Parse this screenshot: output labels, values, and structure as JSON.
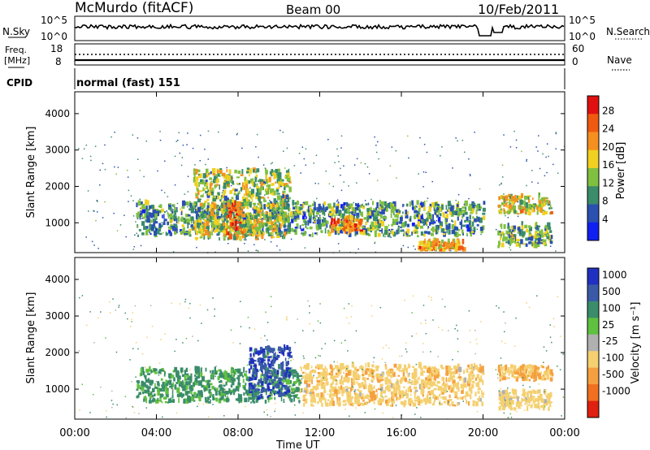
{
  "header": {
    "station": "McMurdo (fitACF)",
    "beam": "Beam 00",
    "date": "10/Feb/2011"
  },
  "strip_nsky": {
    "left_label": "N.Sky",
    "right_label": "N.Search",
    "left_ticks": [
      "10^5",
      "10^0"
    ],
    "right_ticks": [
      "10^5",
      "10^0"
    ]
  },
  "strip_freq": {
    "left_label_1": "Freq.",
    "left_label_2": "[MHz]",
    "right_label": "Nave",
    "left_ticks": [
      "18",
      "8"
    ],
    "right_ticks": [
      "60",
      "0"
    ]
  },
  "strip_cpid": {
    "label": "CPID",
    "value": "normal (fast) 151"
  },
  "x_axis": {
    "title": "Time UT",
    "ticks": [
      "00:00",
      "04:00",
      "08:00",
      "12:00",
      "16:00",
      "20:00",
      "00:00"
    ]
  },
  "power_colorbar": {
    "title": "Power [dB]",
    "ticks": [
      "28",
      "24",
      "20",
      "16",
      "12",
      "8",
      "4"
    ],
    "colors": [
      "#e01010",
      "#f05a10",
      "#f59020",
      "#f0d020",
      "#80c040",
      "#3a8c6a",
      "#2a50b0",
      "#1020f0"
    ]
  },
  "velocity_colorbar": {
    "title": "Velocity [m s⁻¹]",
    "ticks": [
      "1000",
      "500",
      "100",
      "25",
      "-25",
      "-100",
      "-500",
      "-1000"
    ],
    "colors": [
      "#2030c0",
      "#3a5aa8",
      "#3a8c6a",
      "#60c040",
      "#b0b0b0",
      "#f5d070",
      "#f5a040",
      "#f07020",
      "#e02010"
    ]
  },
  "chart_data": [
    {
      "type": "heatmap",
      "title": "",
      "xlabel": "Time UT",
      "ylabel": "Slant Range [km]",
      "xlim": [
        "00:00",
        "24:00"
      ],
      "ylim": [
        180,
        4600
      ],
      "y_ticks": [
        1000,
        2000,
        3000,
        4000
      ],
      "colorbar": "Power [dB]",
      "colorbar_range": [
        0,
        30
      ],
      "echo_regions": [
        {
          "t0": 3.0,
          "t1": 20.0,
          "r0": 600,
          "r1": 1500,
          "value": 10
        },
        {
          "t0": 5.8,
          "t1": 10.5,
          "r0": 500,
          "r1": 2400,
          "value": 14
        },
        {
          "t0": 7.4,
          "t1": 8.2,
          "r0": 500,
          "r1": 1500,
          "value": 24
        },
        {
          "t0": 12.5,
          "t1": 14.0,
          "r0": 700,
          "r1": 1100,
          "value": 22
        },
        {
          "t0": 16.8,
          "t1": 19.0,
          "r0": 200,
          "r1": 450,
          "value": 20
        },
        {
          "t0": 20.7,
          "t1": 23.3,
          "r0": 1200,
          "r1": 1700,
          "value": 16
        },
        {
          "t0": 20.7,
          "t1": 23.3,
          "r0": 300,
          "r1": 900,
          "value": 12
        }
      ]
    },
    {
      "type": "heatmap",
      "title": "",
      "xlabel": "Time UT",
      "ylabel": "Slant Range [km]",
      "xlim": [
        "00:00",
        "24:00"
      ],
      "ylim": [
        180,
        4600
      ],
      "y_ticks": [
        1000,
        2000,
        3000,
        4000
      ],
      "colorbar": "Velocity [m s⁻¹]",
      "colorbar_ticks": [
        1000,
        500,
        100,
        25,
        -25,
        -100,
        -500,
        -1000
      ],
      "echo_regions": [
        {
          "t0": 3.0,
          "t1": 11.0,
          "r0": 600,
          "r1": 1500,
          "value": 100
        },
        {
          "t0": 8.5,
          "t1": 10.5,
          "r0": 700,
          "r1": 2100,
          "value": 700
        },
        {
          "t0": 11.0,
          "t1": 20.0,
          "r0": 500,
          "r1": 1600,
          "value": -200
        },
        {
          "t0": 20.7,
          "t1": 23.3,
          "r0": 1200,
          "r1": 1600,
          "value": -300
        },
        {
          "t0": 20.7,
          "t1": 23.3,
          "r0": 400,
          "r1": 900,
          "value": -150
        }
      ]
    }
  ]
}
